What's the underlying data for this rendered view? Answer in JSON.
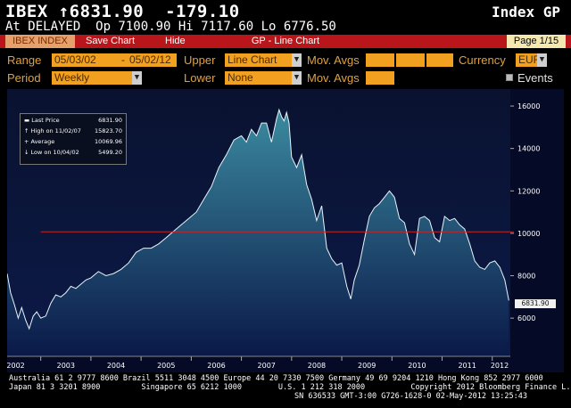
{
  "header": {
    "ticker_line": "IBEX ↑6831.90  -179.10",
    "type_line": "Index GP",
    "quote_line": "At DELAYED  Op 7100.90 Hi 7117.60 Lo 6776.50"
  },
  "toolbar": {
    "index_label": "IBEX INDEX",
    "save_label": "Save Chart",
    "hide_label": "Hide",
    "title": "GP - Line Chart",
    "page_label": "Page 1/15"
  },
  "controls": {
    "range_label": "Range",
    "range_start": "05/03/02",
    "range_sep": "-",
    "range_end": "05/02/12",
    "upper_label": "Upper",
    "upper_value": "Line Chart",
    "mov_avgs_label": "Mov. Avgs",
    "currency_label": "Currency",
    "currency_value": "EUR",
    "period_label": "Period",
    "period_value": "Weekly",
    "lower_label": "Lower",
    "lower_value": "None",
    "mov_avgs_label2": "Mov. Avgs",
    "events_label": "Events"
  },
  "legend": {
    "rows": [
      {
        "key": "Last Price",
        "value": "6831.90"
      },
      {
        "key": "High on 11/02/07",
        "value": "15823.70"
      },
      {
        "key": "Average",
        "value": "10069.96"
      },
      {
        "key": "Low on 10/04/02",
        "value": "5499.20"
      }
    ]
  },
  "last_price_tag": "6831.90",
  "footer": {
    "line1": "Australia 61 2 9777 8600 Brazil 5511 3048 4500 Europe 44 20 7330 7500 Germany 49 69 9204 1210 Hong Kong 852 2977 6000",
    "line2": "Japan 81 3 3201 8900         Singapore 65 6212 1000        U.S. 1 212 318 2000          Copyright 2012 Bloomberg Finance L.P.",
    "line3": "SN 636533 GMT-3:00 G726-1628-0 02-May-2012 13:25:43"
  },
  "colors": {
    "area_top": "#3b8aa0",
    "area_bottom": "#0a1848",
    "line": "#e8f4f8",
    "avg_line": "#d02020"
  },
  "chart_data": {
    "type": "area",
    "title": "",
    "xlabel": "",
    "ylabel": "",
    "x_ticks": [
      "2002",
      "2003",
      "2004",
      "2005",
      "2006",
      "2007",
      "2008",
      "2009",
      "2010",
      "2011",
      "2012"
    ],
    "y_ticks": [
      6000,
      8000,
      10000,
      12000,
      14000,
      16000
    ],
    "ylim": [
      4200,
      16800
    ],
    "xlim": [
      2002.33,
      2012.36
    ],
    "average": 10069.96,
    "series": [
      {
        "x": [
          2002.33,
          2002.4,
          2002.48,
          2002.55,
          2002.62,
          2002.7,
          2002.77,
          2002.85,
          2002.92,
          2003.0,
          2003.1,
          2003.2,
          2003.3,
          2003.4,
          2003.5,
          2003.6,
          2003.7,
          2003.8,
          2003.9,
          2004.0,
          2004.15,
          2004.3,
          2004.45,
          2004.6,
          2004.75,
          2004.9,
          2005.05,
          2005.2,
          2005.35,
          2005.5,
          2005.65,
          2005.8,
          2005.95,
          2006.1,
          2006.25,
          2006.4,
          2006.55,
          2006.7,
          2006.85,
          2007.0,
          2007.1,
          2007.2,
          2007.3,
          2007.4,
          2007.5,
          2007.6,
          2007.7,
          2007.75,
          2007.8,
          2007.85,
          2007.9,
          2007.95,
          2008.0,
          2008.1,
          2008.2,
          2008.3,
          2008.4,
          2008.5,
          2008.6,
          2008.7,
          2008.8,
          2008.9,
          2009.0,
          2009.1,
          2009.18,
          2009.25,
          2009.35,
          2009.45,
          2009.55,
          2009.65,
          2009.75,
          2009.85,
          2009.95,
          2010.05,
          2010.15,
          2010.25,
          2010.35,
          2010.45,
          2010.55,
          2010.65,
          2010.75,
          2010.85,
          2010.95,
          2011.05,
          2011.15,
          2011.25,
          2011.35,
          2011.45,
          2011.55,
          2011.65,
          2011.75,
          2011.85,
          2011.95,
          2012.05,
          2012.15,
          2012.25,
          2012.33
        ],
        "y": [
          8100,
          7200,
          6600,
          6000,
          6500,
          5900,
          5500,
          6100,
          6300,
          6000,
          6100,
          6700,
          7100,
          7000,
          7200,
          7500,
          7400,
          7600,
          7800,
          7900,
          8200,
          8000,
          8100,
          8300,
          8600,
          9100,
          9300,
          9300,
          9500,
          9800,
          10100,
          10400,
          10700,
          11000,
          11600,
          12200,
          13100,
          13700,
          14400,
          14600,
          14300,
          14900,
          14600,
          15200,
          15200,
          14300,
          15400,
          15823.7,
          15500,
          15300,
          15700,
          15200,
          13600,
          13100,
          13700,
          12300,
          11600,
          10600,
          11300,
          9300,
          8800,
          8500,
          8600,
          7500,
          6900,
          7800,
          8500,
          9700,
          10800,
          11200,
          11400,
          11700,
          12000,
          11700,
          10700,
          10500,
          9500,
          9000,
          10700,
          10800,
          10600,
          9800,
          9600,
          10800,
          10600,
          10700,
          10400,
          10200,
          9500,
          8700,
          8400,
          8300,
          8600,
          8700,
          8400,
          7800,
          6831.9
        ]
      }
    ]
  }
}
